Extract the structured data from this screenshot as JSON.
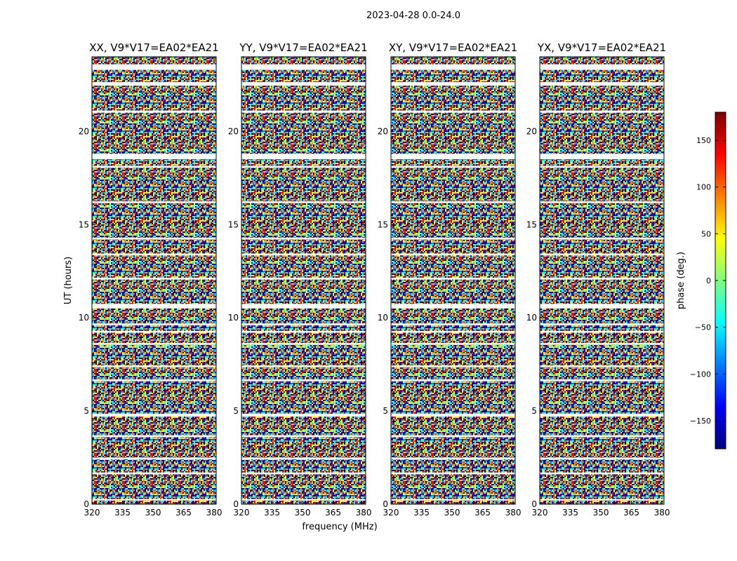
{
  "figure": {
    "suptitle": "2023-04-28 0.0-24.0",
    "xlabel": "frequency (MHz)",
    "ylabel": "UT (hours)"
  },
  "chart_data": {
    "type": "heatmap",
    "title": "2023-04-28 0.0-24.0",
    "xlabel": "frequency (MHz)",
    "ylabel": "UT (hours)",
    "xlim": [
      320,
      381
    ],
    "ylim": [
      0,
      24
    ],
    "xticks": [
      320,
      335,
      350,
      365,
      380
    ],
    "yticks": [
      0,
      5,
      10,
      15,
      20
    ],
    "panels": [
      {
        "title": "XX, V9*V17=EA02*EA21",
        "polarization": "XX"
      },
      {
        "title": "YY, V9*V17=EA02*EA21",
        "polarization": "YY"
      },
      {
        "title": "XY, V9*V17=EA02*EA21",
        "polarization": "XY"
      },
      {
        "title": "YX, V9*V17=EA02*EA21",
        "polarization": "YX"
      }
    ],
    "colorbar": {
      "label": "phase (deg.)",
      "range": [
        -180,
        180
      ],
      "ticks": [
        -150,
        -100,
        -50,
        0,
        50,
        100,
        150
      ],
      "colormap": "jet"
    },
    "flagged_ut_bands_hours": [
      [
        23.3,
        23.6
      ],
      [
        22.45,
        22.65
      ],
      [
        21.0,
        21.12
      ],
      [
        18.5,
        18.8
      ],
      [
        18.05,
        18.15
      ],
      [
        16.15,
        16.25
      ],
      [
        14.2,
        14.3
      ],
      [
        13.35,
        13.45
      ],
      [
        12.05,
        12.15
      ],
      [
        10.5,
        10.75
      ],
      [
        9.6,
        9.7
      ],
      [
        9.2,
        9.3
      ],
      [
        8.55,
        8.65
      ],
      [
        7.35,
        7.45
      ],
      [
        6.6,
        6.7
      ],
      [
        4.7,
        4.85
      ],
      [
        3.6,
        3.7
      ],
      [
        2.4,
        2.5
      ],
      [
        1.6,
        1.7
      ],
      [
        0.2,
        0.28
      ]
    ]
  },
  "colors": {
    "background": "#ffffff",
    "axes": "#000000",
    "jet": [
      "#00007f",
      "#0000ff",
      "#007fff",
      "#00ffff",
      "#7fff7f",
      "#ffff00",
      "#ff7f00",
      "#ff0000",
      "#7f0000"
    ]
  }
}
